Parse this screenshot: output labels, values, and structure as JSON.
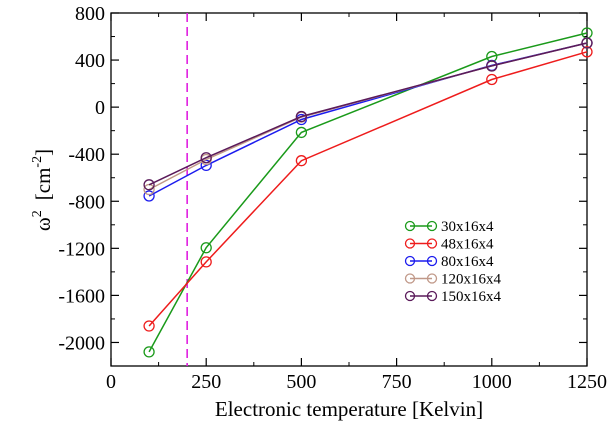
{
  "chart_data": {
    "type": "line",
    "title": "",
    "xlabel": "Electronic temperature [Kelvin]",
    "ylabel_symbol": "ω",
    "ylabel_exponent": "2",
    "ylabel_unit_open": "[cm",
    "ylabel_unit_exponent": "-2",
    "ylabel_unit_close": "]",
    "xlim": [
      0,
      1250
    ],
    "ylim": [
      -2200,
      800
    ],
    "x_ticks": [
      0,
      250,
      500,
      750,
      1000,
      1250
    ],
    "y_ticks": [
      -2000,
      -1600,
      -1200,
      -800,
      -400,
      0,
      400,
      800
    ],
    "x_tick_labels": [
      "0",
      "250",
      "500",
      "750",
      "1000",
      "1250"
    ],
    "y_tick_labels": [
      "-2000",
      "-1600",
      "-1200",
      "-800",
      "-400",
      "0",
      "400",
      "800"
    ],
    "grid": false,
    "legend_position": "center-right",
    "reference_line": {
      "orientation": "vertical",
      "x": 200,
      "style": "dashed",
      "color": "#e020e0"
    },
    "x": [
      100,
      250,
      500,
      1000,
      1250
    ],
    "series": [
      {
        "name": "30x16x4",
        "color": "#1a9a1a",
        "values": [
          -2080,
          -1195,
          -215,
          430,
          630
        ]
      },
      {
        "name": "48x16x4",
        "color": "#ee1c1c",
        "values": [
          -1860,
          -1315,
          -455,
          235,
          470
        ]
      },
      {
        "name": "80x16x4",
        "color": "#1c1cee",
        "values": [
          -755,
          -495,
          -105,
          355,
          545
        ]
      },
      {
        "name": "120x16x4",
        "color": "#c09888",
        "values": [
          -700,
          -445,
          -85,
          350,
          545
        ]
      },
      {
        "name": "150x16x4",
        "color": "#5a1a5a",
        "values": [
          -660,
          -430,
          -80,
          350,
          545
        ]
      }
    ]
  }
}
